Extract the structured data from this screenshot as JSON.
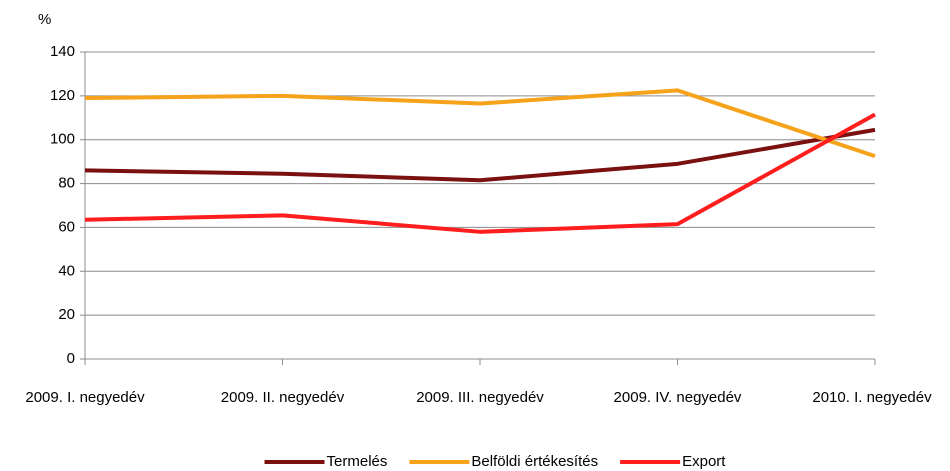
{
  "chart_data": {
    "type": "line",
    "y_label": "%",
    "categories": [
      "2009. I. negyedév",
      "2009. II. negyedév",
      "2009. III. negyedév",
      "2009. IV. negyedév",
      "2010. I. negyedév"
    ],
    "series": [
      {
        "name": "Termelés",
        "color": "#7b1010",
        "values": [
          86,
          84.5,
          81.5,
          89,
          104.5
        ]
      },
      {
        "name": "Belföldi értékesítés",
        "color": "#f7a21b",
        "values": [
          119,
          120,
          116.5,
          122.5,
          92.5
        ]
      },
      {
        "name": "Export",
        "color": "#ff1d1d",
        "values": [
          63.5,
          65.5,
          58,
          61.5,
          111.5
        ]
      }
    ],
    "ylim": [
      0,
      140
    ],
    "yticks": [
      0,
      20,
      40,
      60,
      80,
      100,
      120,
      140
    ],
    "grid": true,
    "legend": "bottom"
  }
}
